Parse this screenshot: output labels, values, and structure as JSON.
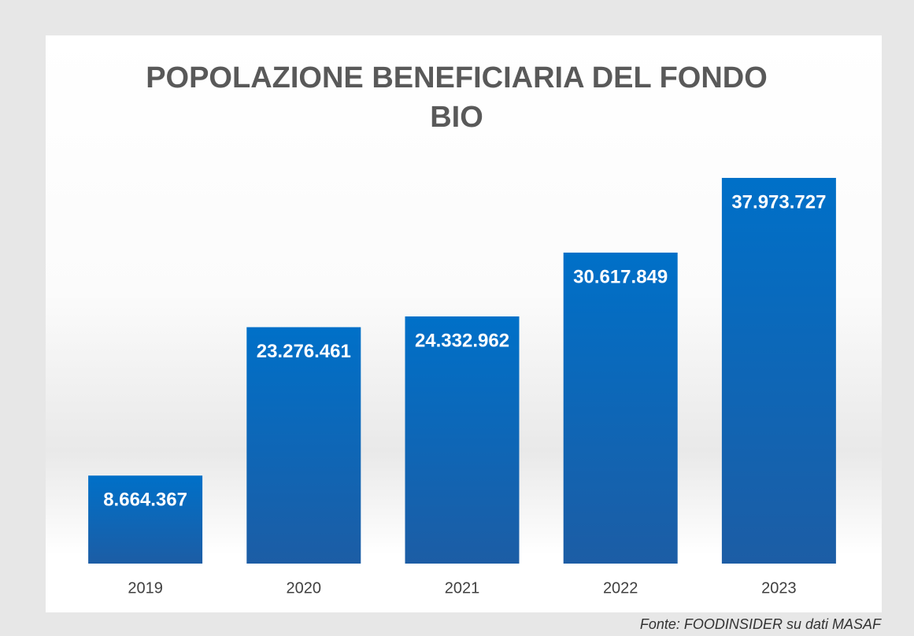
{
  "chart_data": {
    "type": "bar",
    "title": "POPOLAZIONE BENEFICIARIA DEL FONDO BIO",
    "categories": [
      "2019",
      "2020",
      "2021",
      "2022",
      "2023"
    ],
    "values": [
      8664367,
      23276461,
      24332962,
      30617849,
      37973727
    ],
    "value_labels": [
      "8.664.367",
      "23.276.461",
      "24.332.962",
      "30.617.849",
      "37.973.727"
    ],
    "color": "#0070c0",
    "source": "Fonte: FOODINSIDER su dati MASAF"
  }
}
